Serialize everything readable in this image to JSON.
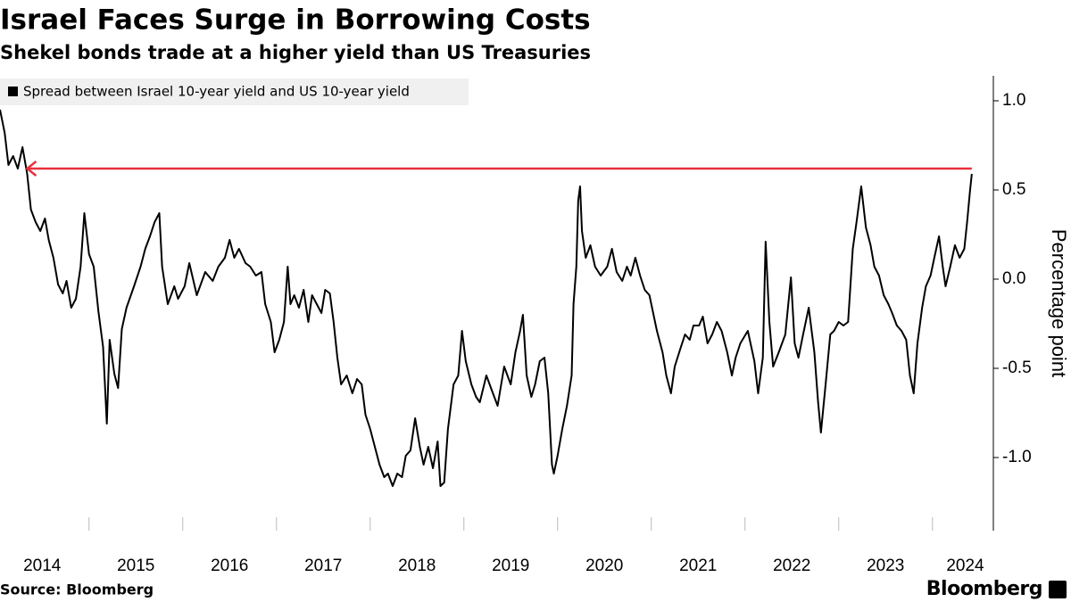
{
  "chart_data": {
    "type": "line",
    "title": "Israel Faces Surge in Borrowing Costs",
    "subtitle": "Shekel bonds trade at a higher yield than US Treasuries",
    "y_axis_label": "Percentage point",
    "source": "Source: Bloomberg",
    "brand": "Bloomberg",
    "xlim": [
      2014.05,
      2024.65
    ],
    "xticks": [
      {
        "value": 2014.5,
        "label": "2014"
      },
      {
        "value": 2015.5,
        "label": "2015"
      },
      {
        "value": 2016.5,
        "label": "2016"
      },
      {
        "value": 2017.5,
        "label": "2017"
      },
      {
        "value": 2018.5,
        "label": "2018"
      },
      {
        "value": 2019.5,
        "label": "2019"
      },
      {
        "value": 2020.5,
        "label": "2020"
      },
      {
        "value": 2021.5,
        "label": "2021"
      },
      {
        "value": 2022.5,
        "label": "2022"
      },
      {
        "value": 2023.5,
        "label": "2023"
      },
      {
        "value": 2024.35,
        "label": "2024"
      }
    ],
    "xminorticks": [
      2015,
      2016,
      2017,
      2018,
      2019,
      2020,
      2021,
      2022,
      2023,
      2024
    ],
    "ylim": [
      -1.41,
      1.14
    ],
    "yticks": [
      {
        "value": 1,
        "label": "1.0"
      },
      0.5,
      {
        "value": 0,
        "label": "0.0"
      },
      -0.5,
      {
        "value": -1,
        "label": "-1.0"
      }
    ],
    "annotation_line": {
      "y": 0.62,
      "x_start": 2024.42,
      "x_end": 2014.34,
      "color": "#e8303b"
    },
    "series": [
      {
        "name": "Spread between Israel 10-year yield and US 10-year yield",
        "color": "#000000",
        "x": [
          2014.05,
          2014.1,
          2014.14,
          2014.19,
          2014.24,
          2014.29,
          2014.34,
          2014.38,
          2014.43,
          2014.48,
          2014.53,
          2014.57,
          2014.62,
          2014.67,
          2014.72,
          2014.76,
          2014.81,
          2014.86,
          2014.91,
          2014.95,
          2015.0,
          2015.05,
          2015.1,
          2015.15,
          2015.19,
          2015.22,
          2015.27,
          2015.31,
          2015.35,
          2015.4,
          2015.48,
          2015.55,
          2015.6,
          2015.65,
          2015.7,
          2015.75,
          2015.78,
          2015.84,
          2015.91,
          2015.95,
          2016.02,
          2016.07,
          2016.15,
          2016.24,
          2016.32,
          2016.38,
          2016.45,
          2016.5,
          2016.55,
          2016.6,
          2016.67,
          2016.72,
          2016.78,
          2016.84,
          2016.88,
          2016.94,
          2016.98,
          2017.03,
          2017.08,
          2017.12,
          2017.15,
          2017.19,
          2017.24,
          2017.29,
          2017.34,
          2017.38,
          2017.43,
          2017.48,
          2017.52,
          2017.57,
          2017.61,
          2017.65,
          2017.69,
          2017.75,
          2017.81,
          2017.86,
          2017.91,
          2017.95,
          2018.0,
          2018.05,
          2018.1,
          2018.15,
          2018.19,
          2018.24,
          2018.29,
          2018.34,
          2018.38,
          2018.43,
          2018.48,
          2018.53,
          2018.57,
          2018.62,
          2018.67,
          2018.72,
          2018.75,
          2018.79,
          2018.83,
          2018.89,
          2018.94,
          2018.98,
          2019.02,
          2019.08,
          2019.13,
          2019.17,
          2019.24,
          2019.31,
          2019.36,
          2019.43,
          2019.5,
          2019.55,
          2019.6,
          2019.63,
          2019.67,
          2019.72,
          2019.76,
          2019.81,
          2019.86,
          2019.9,
          2019.94,
          2019.96,
          2020.0,
          2020.05,
          2020.1,
          2020.15,
          2020.17,
          2020.2,
          2020.22,
          2020.24,
          2020.26,
          2020.3,
          2020.35,
          2020.4,
          2020.46,
          2020.53,
          2020.58,
          2020.63,
          2020.69,
          2020.74,
          2020.78,
          2020.83,
          2020.88,
          2020.93,
          2020.98,
          2021.02,
          2021.06,
          2021.12,
          2021.16,
          2021.21,
          2021.25,
          2021.31,
          2021.36,
          2021.41,
          2021.45,
          2021.51,
          2021.55,
          2021.6,
          2021.65,
          2021.7,
          2021.75,
          2021.81,
          2021.86,
          2021.9,
          2021.95,
          2022.03,
          2022.1,
          2022.14,
          2022.19,
          2022.22,
          2022.26,
          2022.3,
          2022.36,
          2022.43,
          2022.49,
          2022.53,
          2022.57,
          2022.62,
          2022.68,
          2022.74,
          2022.78,
          2022.81,
          2022.86,
          2022.91,
          2022.95,
          2023.0,
          2023.05,
          2023.1,
          2023.15,
          2023.19,
          2023.24,
          2023.29,
          2023.34,
          2023.38,
          2023.43,
          2023.48,
          2023.53,
          2023.57,
          2023.62,
          2023.67,
          2023.72,
          2023.76,
          2023.8,
          2023.84,
          2023.89,
          2023.93,
          2023.98,
          2024.02,
          2024.07,
          2024.11,
          2024.14,
          2024.19,
          2024.24,
          2024.29,
          2024.34,
          2024.37,
          2024.4,
          2024.42
        ],
        "values": [
          0.95,
          0.82,
          0.64,
          0.69,
          0.62,
          0.74,
          0.59,
          0.39,
          0.32,
          0.27,
          0.34,
          0.22,
          0.12,
          -0.03,
          -0.08,
          -0.01,
          -0.16,
          -0.11,
          0.07,
          0.37,
          0.14,
          0.07,
          -0.18,
          -0.38,
          -0.81,
          -0.34,
          -0.53,
          -0.61,
          -0.28,
          -0.16,
          -0.04,
          0.07,
          0.17,
          0.24,
          0.32,
          0.37,
          0.07,
          -0.14,
          -0.04,
          -0.11,
          -0.04,
          0.09,
          -0.09,
          0.04,
          -0.01,
          0.07,
          0.12,
          0.22,
          0.12,
          0.17,
          0.09,
          0.07,
          0.02,
          0.04,
          -0.14,
          -0.24,
          -0.41,
          -0.34,
          -0.24,
          0.07,
          -0.14,
          -0.09,
          -0.16,
          -0.06,
          -0.24,
          -0.09,
          -0.14,
          -0.19,
          -0.06,
          -0.08,
          -0.24,
          -0.44,
          -0.59,
          -0.54,
          -0.64,
          -0.56,
          -0.59,
          -0.76,
          -0.84,
          -0.94,
          -1.04,
          -1.11,
          -1.09,
          -1.16,
          -1.09,
          -1.11,
          -0.99,
          -0.96,
          -0.78,
          -0.94,
          -1.04,
          -0.94,
          -1.06,
          -0.91,
          -1.16,
          -1.14,
          -0.84,
          -0.59,
          -0.54,
          -0.29,
          -0.46,
          -0.59,
          -0.66,
          -0.69,
          -0.54,
          -0.64,
          -0.71,
          -0.49,
          -0.59,
          -0.41,
          -0.29,
          -0.2,
          -0.54,
          -0.66,
          -0.59,
          -0.46,
          -0.44,
          -0.64,
          -1.04,
          -1.09,
          -0.99,
          -0.84,
          -0.71,
          -0.54,
          -0.14,
          0.07,
          0.44,
          0.52,
          0.27,
          0.12,
          0.19,
          0.07,
          0.02,
          0.07,
          0.17,
          0.04,
          -0.01,
          0.07,
          0.02,
          0.12,
          0.02,
          -0.06,
          -0.09,
          -0.19,
          -0.29,
          -0.41,
          -0.54,
          -0.64,
          -0.49,
          -0.39,
          -0.31,
          -0.34,
          -0.26,
          -0.26,
          -0.21,
          -0.36,
          -0.31,
          -0.24,
          -0.29,
          -0.41,
          -0.54,
          -0.44,
          -0.36,
          -0.29,
          -0.46,
          -0.64,
          -0.44,
          0.21,
          -0.24,
          -0.49,
          -0.41,
          -0.31,
          0.01,
          -0.36,
          -0.44,
          -0.31,
          -0.16,
          -0.41,
          -0.69,
          -0.86,
          -0.59,
          -0.31,
          -0.29,
          -0.24,
          -0.26,
          -0.24,
          0.17,
          0.32,
          0.52,
          0.29,
          0.19,
          0.07,
          0.02,
          -0.09,
          -0.14,
          -0.19,
          -0.26,
          -0.29,
          -0.34,
          -0.54,
          -0.64,
          -0.36,
          -0.16,
          -0.04,
          0.02,
          0.12,
          0.24,
          0.07,
          -0.04,
          0.07,
          0.19,
          0.12,
          0.17,
          0.32,
          0.49,
          0.59
        ]
      }
    ]
  }
}
